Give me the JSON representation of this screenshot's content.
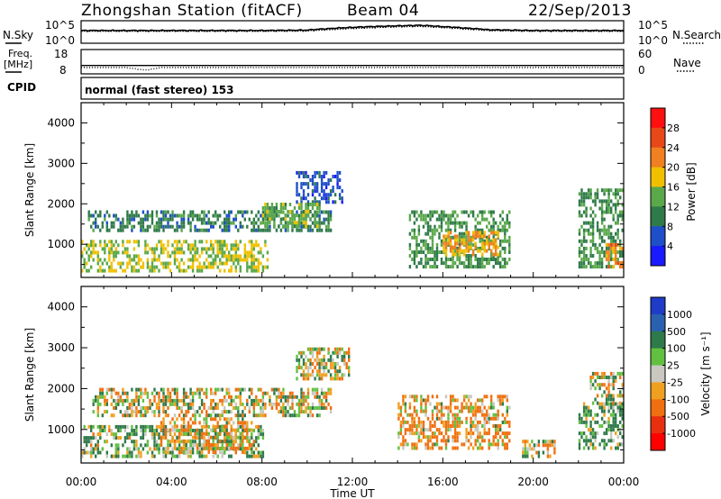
{
  "header": {
    "station": "Zhongshan Station (fitACF)",
    "beam": "Beam 04",
    "date": "22/Sep/2013"
  },
  "nsky_panel": {
    "left_label": "N.Sky",
    "right_label": "N.Search",
    "tick_top_left": "10^5",
    "tick_bottom_left": "10^0",
    "tick_top_right": "10^5",
    "tick_bottom_right": "10^0"
  },
  "freq_panel": {
    "left_label_line1": "Freq.",
    "left_label_line2": "[MHz]",
    "right_label": "Nave",
    "left_tick_top": "18",
    "left_tick_bottom": "8",
    "right_tick_top": "60",
    "right_tick_bottom": "0"
  },
  "cpid_panel": {
    "left_label": "CPID",
    "mode_text": "normal (fast stereo) 153"
  },
  "x_axis": {
    "title": "Time UT",
    "ticks": [
      "00:00",
      "04:00",
      "08:00",
      "12:00",
      "16:00",
      "20:00",
      "00:00"
    ]
  },
  "power_colorbar": {
    "label": "Power [dB]",
    "ticks": [
      "4",
      "8",
      "12",
      "16",
      "20",
      "24",
      "28"
    ],
    "colors": [
      "#1a1aff",
      "#1e4fc8",
      "#2f7a4a",
      "#5aa84a",
      "#f0c000",
      "#f08020",
      "#e84818",
      "#ff1010"
    ]
  },
  "velocity_colorbar": {
    "label": "Velocity [m s⁻¹]",
    "ticks": [
      "1000",
      "500",
      "100",
      "25",
      "-25",
      "-100",
      "-500",
      "-1000"
    ],
    "colors": [
      "#1e3cc8",
      "#2a60b0",
      "#2f7a4a",
      "#62c040",
      "#c8c8c0",
      "#f0a020",
      "#f07010",
      "#e83010",
      "#ff0000"
    ]
  },
  "chart_data": [
    {
      "type": "line",
      "title": "Zhongshan Station (fitACF)  Beam 04  22/Sep/2013",
      "ylabel": "N.Sky",
      "y2label": "N.Search",
      "scale": "log",
      "x_hours": [
        0,
        2,
        4,
        6,
        8,
        10,
        11,
        12,
        13,
        14,
        15,
        16,
        17,
        18,
        20,
        22,
        24
      ],
      "series": [
        {
          "name": "N.Sky",
          "values": [
            1000,
            1000,
            1000,
            1000,
            1000,
            1200,
            3000,
            6000,
            10000,
            15000,
            20000,
            9000,
            4000,
            1500,
            1000,
            1000,
            1000
          ]
        },
        {
          "name": "N.Search",
          "values": [
            600,
            600,
            600,
            600,
            600,
            700,
            1500,
            3000,
            5000,
            8000,
            10000,
            5000,
            2000,
            900,
            600,
            600,
            600
          ]
        }
      ]
    },
    {
      "type": "line",
      "ylabel": "Freq. [MHz]",
      "y2label": "Nave",
      "ylim": [
        8,
        18
      ],
      "y2lim": [
        0,
        60
      ],
      "x_hours": [
        0,
        2,
        2.8,
        3.1,
        3.5,
        4,
        8,
        12,
        16,
        20,
        24
      ],
      "series": [
        {
          "name": "Freq.",
          "values": [
            10.4,
            10.4,
            9.3,
            9.6,
            10.4,
            10.4,
            10.4,
            10.4,
            10.4,
            10.4,
            10.4
          ]
        },
        {
          "name": "Nave",
          "values": [
            20,
            20,
            20,
            20,
            20,
            20,
            20,
            20,
            20,
            20,
            20
          ]
        }
      ]
    },
    {
      "type": "heatmap",
      "ylabel": "Slant Range [km]",
      "xlabel": "Time UT",
      "ylim": [
        180,
        4500
      ],
      "xlim_hours": [
        0,
        24
      ],
      "colorbar": "Power [dB]",
      "value_range": [
        3,
        30
      ],
      "regions": [
        {
          "t0": 0.0,
          "t1": 8.2,
          "r0": 300,
          "r1": 1100,
          "value": 18
        },
        {
          "t0": 0.3,
          "t1": 11.0,
          "r0": 1300,
          "r1": 1800,
          "value": 12
        },
        {
          "t0": 9.5,
          "t1": 11.5,
          "r0": 2000,
          "r1": 2800,
          "value": 8
        },
        {
          "t0": 8.0,
          "t1": 10.5,
          "r0": 1400,
          "r1": 2000,
          "value": 16
        },
        {
          "t0": 14.5,
          "t1": 19.0,
          "r0": 400,
          "r1": 1800,
          "value": 14
        },
        {
          "t0": 16.0,
          "t1": 18.5,
          "r0": 700,
          "r1": 1300,
          "value": 22
        },
        {
          "t0": 22.0,
          "t1": 24.0,
          "r0": 400,
          "r1": 2300,
          "value": 14
        },
        {
          "t0": 23.2,
          "t1": 24.0,
          "r0": 400,
          "r1": 1000,
          "value": 24
        }
      ]
    },
    {
      "type": "heatmap",
      "ylabel": "Slant Range [km]",
      "xlabel": "Time UT",
      "ylim": [
        180,
        4500
      ],
      "xlim_hours": [
        0,
        24
      ],
      "colorbar": "Velocity [m s⁻¹]",
      "value_range": [
        -1000,
        1000
      ],
      "regions": [
        {
          "t0": 0.0,
          "t1": 8.0,
          "r0": 300,
          "r1": 1100,
          "value": 100
        },
        {
          "t0": 3.5,
          "t1": 7.5,
          "r0": 400,
          "r1": 1300,
          "value": -100
        },
        {
          "t0": 0.5,
          "t1": 11.0,
          "r0": 1300,
          "r1": 2000,
          "value": 0
        },
        {
          "t0": 9.5,
          "t1": 11.8,
          "r0": 2200,
          "r1": 3000,
          "value": 0
        },
        {
          "t0": 14.0,
          "t1": 19.0,
          "r0": 500,
          "r1": 1800,
          "value": -100
        },
        {
          "t0": 19.5,
          "t1": 21.0,
          "r0": 300,
          "r1": 700,
          "value": 0
        },
        {
          "t0": 22.0,
          "t1": 24.0,
          "r0": 500,
          "r1": 1600,
          "value": 150
        },
        {
          "t0": 22.5,
          "t1": 24.0,
          "r0": 1600,
          "r1": 2400,
          "value": 0
        }
      ]
    }
  ]
}
